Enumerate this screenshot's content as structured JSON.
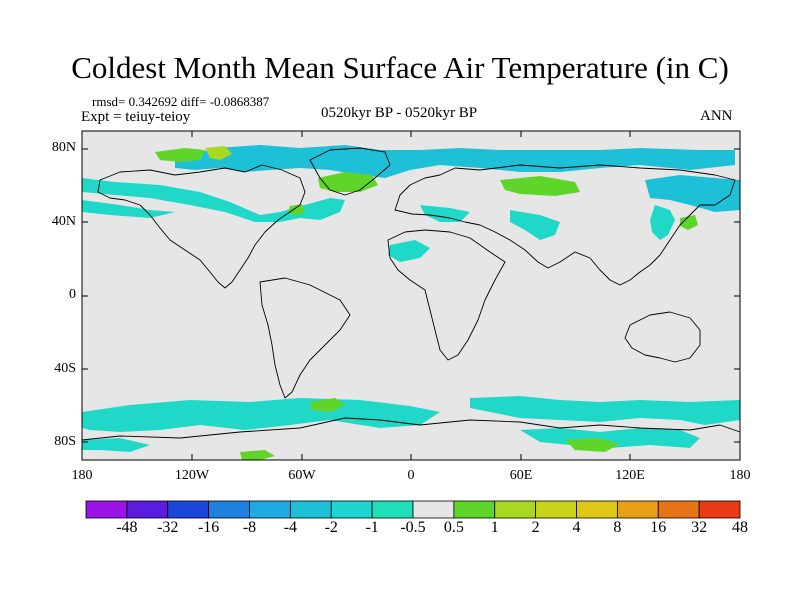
{
  "title": "Coldest Month Mean Surface Air Temperature (in C)",
  "stats": "rmsd= 0.342692 diff= -0.0868387",
  "experiment": "Expt = teiuy-teioy",
  "period": "0520kyr BP - 0520kyr BP",
  "season": "ANN",
  "map": {
    "lat_labels": [
      "80N",
      "40N",
      "0",
      "40S",
      "80S"
    ],
    "lon_labels": [
      "180",
      "120W",
      "60W",
      "0",
      "60E",
      "120E",
      "180"
    ],
    "background_color": "#e6e6e6",
    "anomaly_colors": {
      "negative_small": "#1fd8c8",
      "negative_medium": "#1ec0d8",
      "positive_small": "#5fd52a",
      "positive_medium": "#a8d820"
    }
  },
  "colorbar": {
    "labels": [
      "-48",
      "-32",
      "-16",
      "-8",
      "-4",
      "-2",
      "-1",
      "-0.5",
      "0.5",
      "1",
      "2",
      "4",
      "8",
      "16",
      "32",
      "48"
    ],
    "colors": [
      "#9a14e6",
      "#5a1de0",
      "#1a47d8",
      "#1f82e0",
      "#1ea9e0",
      "#1ec0d8",
      "#1ed4d0",
      "#1fe0b8",
      "#e6e6e6",
      "#5fd52a",
      "#a8d820",
      "#c8d41a",
      "#e0c81a",
      "#e8a018",
      "#e87418",
      "#e83a14"
    ]
  }
}
